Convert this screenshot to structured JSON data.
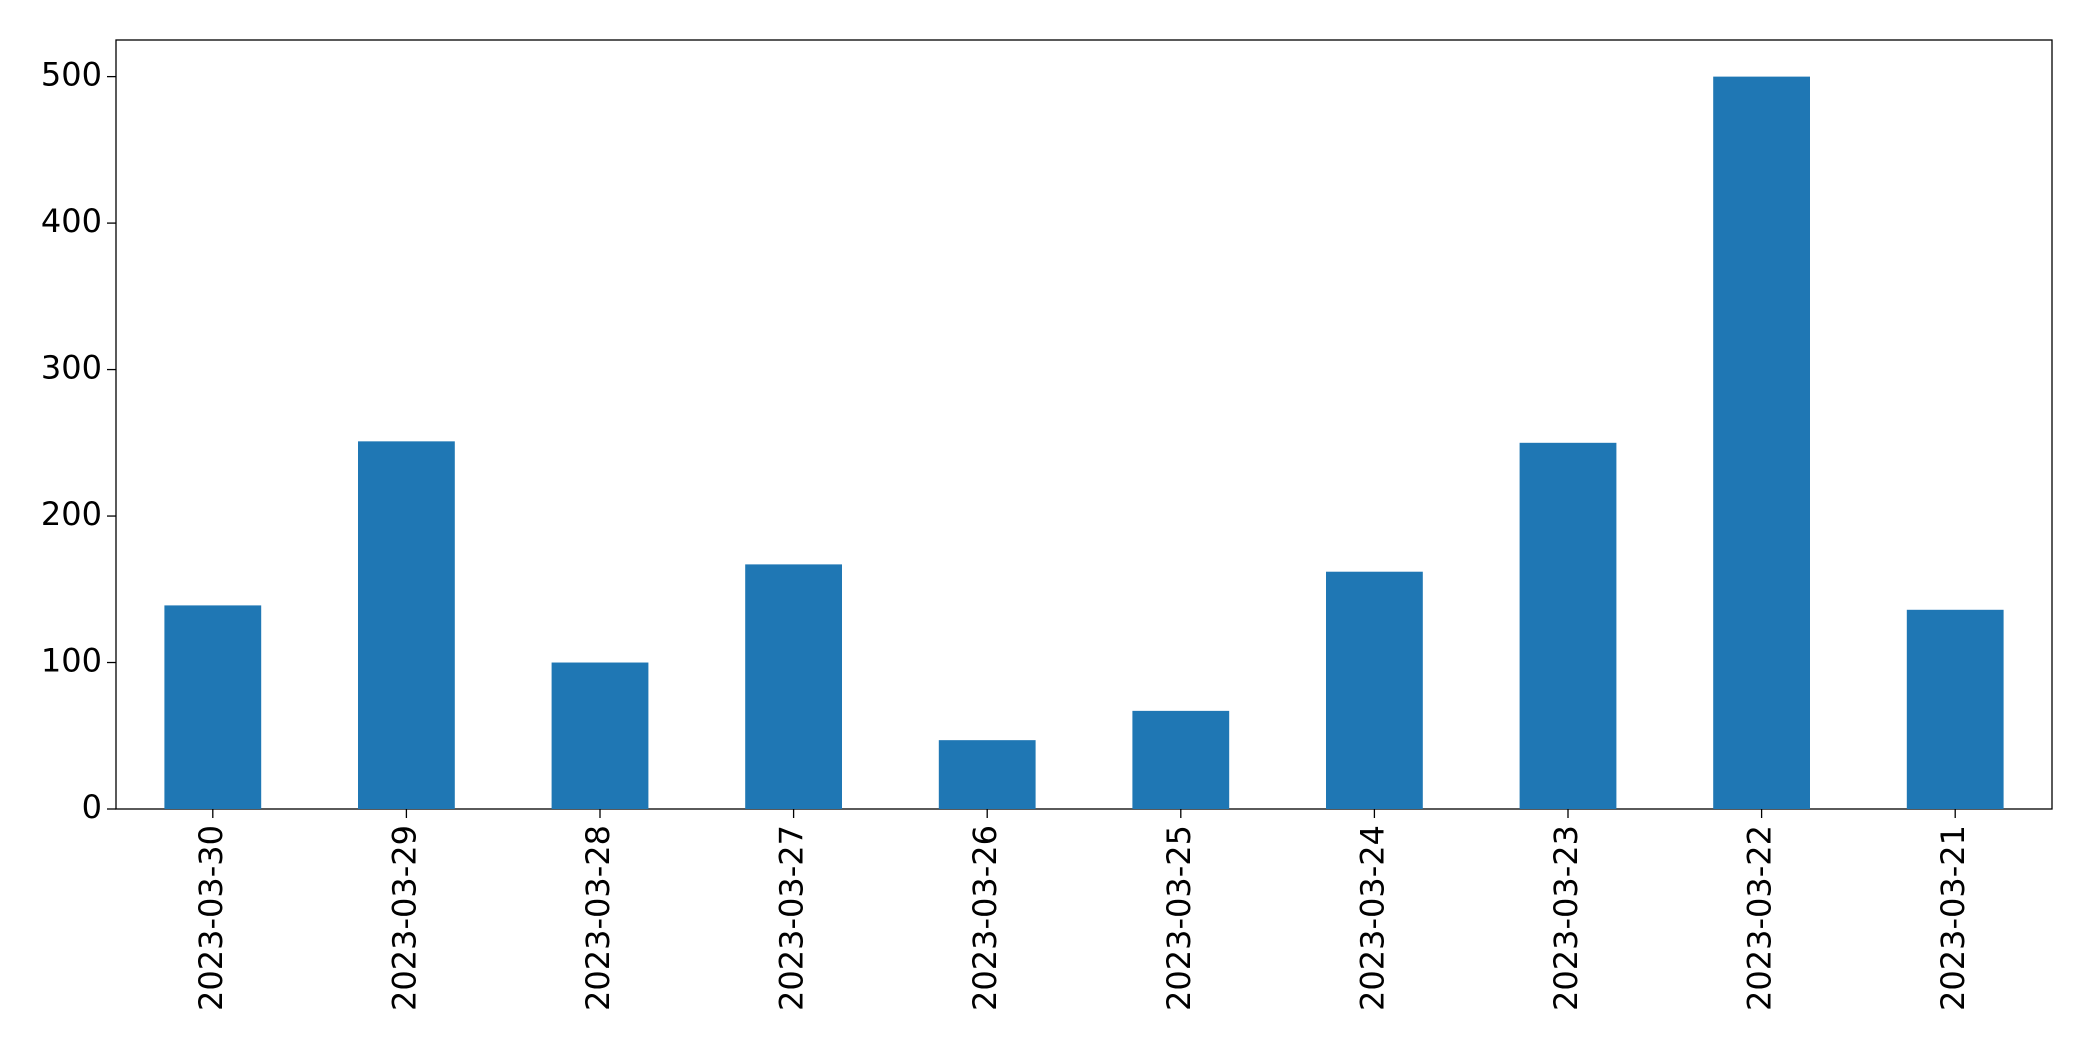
{
  "chart_data": {
    "type": "bar",
    "categories": [
      "2023-03-30",
      "2023-03-29",
      "2023-03-28",
      "2023-03-27",
      "2023-03-26",
      "2023-03-25",
      "2023-03-24",
      "2023-03-23",
      "2023-03-22",
      "2023-03-21"
    ],
    "values": [
      139,
      251,
      100,
      167,
      47,
      67,
      162,
      250,
      500,
      136
    ],
    "color": "#1f77b4",
    "ylim": [
      0,
      525
    ],
    "yticks": [
      0,
      100,
      200,
      300,
      400,
      500
    ],
    "grid": false
  }
}
